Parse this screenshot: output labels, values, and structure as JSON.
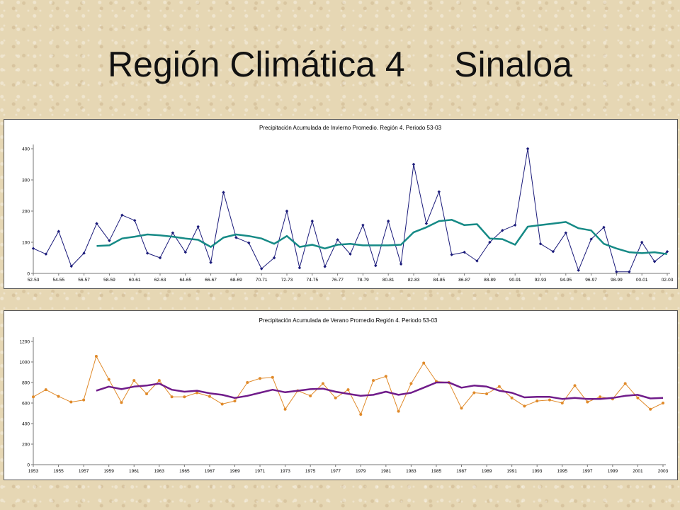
{
  "page": {
    "title": "Región Climática 4     Sinaloa"
  },
  "chart_data": [
    {
      "type": "line",
      "title": "Precipitación Acumulada de Invierno Promedio. Región 4. Periodo 53-03",
      "xlabel": "",
      "ylabel": "",
      "ylim": [
        0,
        400
      ],
      "yticks": [
        0,
        100,
        200,
        300,
        400
      ],
      "grid": false,
      "legend": "none",
      "categories": [
        "52-53",
        "53-54",
        "54-55",
        "55-56",
        "56-57",
        "57-58",
        "58-59",
        "59-60",
        "60-61",
        "61-62",
        "62-63",
        "63-64",
        "64-65",
        "65-66",
        "66-67",
        "67-68",
        "68-69",
        "69-70",
        "70-71",
        "71-72",
        "72-73",
        "73-74",
        "74-75",
        "75-76",
        "76-77",
        "77-78",
        "78-79",
        "79-80",
        "80-81",
        "81-82",
        "82-83",
        "83-84",
        "84-85",
        "85-86",
        "86-87",
        "87-88",
        "88-89",
        "89-90",
        "90-91",
        "91-92",
        "92-93",
        "93-94",
        "94-95",
        "95-96",
        "96-97",
        "97-98",
        "98-99",
        "99-00",
        "00-01",
        "01-02",
        "02-03"
      ],
      "tick_labels": [
        "52-53",
        "54-55",
        "56-57",
        "58-59",
        "60-61",
        "62-63",
        "64-65",
        "66-67",
        "68-69",
        "70-71",
        "72-73",
        "74-75",
        "76-77",
        "78-79",
        "80-81",
        "82-83",
        "84-85",
        "86-87",
        "88-89",
        "90-91",
        "92-93",
        "94-95",
        "96-97",
        "98-99",
        "00-01",
        "02-03"
      ],
      "series": [
        {
          "color": "#1a1a7a",
          "marker": "diamond",
          "stroke_width": 1,
          "values": [
            80,
            62,
            135,
            23,
            65,
            160,
            105,
            187,
            170,
            65,
            50,
            130,
            68,
            150,
            35,
            260,
            115,
            98,
            15,
            50,
            200,
            18,
            168,
            22,
            108,
            62,
            155,
            25,
            168,
            30,
            350,
            160,
            262,
            60,
            68,
            40,
            100,
            138,
            155,
            400,
            95,
            70,
            130,
            10,
            110,
            148,
            5,
            5,
            100,
            38,
            70
          ]
        },
        {
          "color": "#168a86",
          "marker": "none",
          "stroke_width": 2.5,
          "values": [
            null,
            null,
            null,
            null,
            null,
            88,
            90,
            112,
            118,
            125,
            122,
            118,
            112,
            108,
            85,
            115,
            125,
            120,
            112,
            95,
            120,
            85,
            92,
            80,
            92,
            95,
            90,
            90,
            90,
            92,
            132,
            148,
            168,
            172,
            155,
            158,
            112,
            110,
            92,
            150,
            155,
            160,
            165,
            145,
            138,
            95,
            80,
            68,
            65,
            68,
            62
          ]
        }
      ]
    },
    {
      "type": "line",
      "title": "Precipitación Acumulada de Verano Promedio.Región 4. Periodo 53-03",
      "xlabel": "",
      "ylabel": "",
      "ylim": [
        0,
        1200
      ],
      "yticks": [
        0,
        200,
        400,
        600,
        800,
        1000,
        1200
      ],
      "grid": false,
      "legend": "none",
      "categories": [
        "1953",
        "1954",
        "1955",
        "1956",
        "1957",
        "1958",
        "1959",
        "1960",
        "1961",
        "1962",
        "1963",
        "1964",
        "1965",
        "1966",
        "1967",
        "1968",
        "1969",
        "1970",
        "1971",
        "1972",
        "1973",
        "1974",
        "1975",
        "1976",
        "1977",
        "1978",
        "1979",
        "1980",
        "1981",
        "1982",
        "1983",
        "1984",
        "1985",
        "1986",
        "1987",
        "1988",
        "1989",
        "1990",
        "1991",
        "1992",
        "1993",
        "1994",
        "1995",
        "1996",
        "1997",
        "1998",
        "1999",
        "2000",
        "2001",
        "2002",
        "2003"
      ],
      "tick_labels": [
        "1953",
        "1955",
        "1957",
        "1959",
        "1961",
        "1963",
        "1965",
        "1967",
        "1969",
        "1971",
        "1973",
        "1975",
        "1977",
        "1979",
        "1981",
        "1983",
        "1985",
        "1987",
        "1989",
        "1991",
        "1993",
        "1995",
        "1997",
        "1999",
        "2001",
        "2003"
      ],
      "series": [
        {
          "color": "#e08a2a",
          "marker": "dot",
          "stroke_width": 1,
          "values": [
            660,
            730,
            665,
            610,
            630,
            1055,
            830,
            605,
            820,
            690,
            820,
            660,
            660,
            700,
            665,
            590,
            620,
            800,
            840,
            850,
            540,
            720,
            670,
            790,
            650,
            730,
            490,
            820,
            860,
            520,
            790,
            990,
            810,
            800,
            550,
            700,
            690,
            760,
            650,
            570,
            620,
            630,
            600,
            770,
            610,
            660,
            640,
            790,
            650,
            540,
            600
          ]
        },
        {
          "color": "#701c8a",
          "marker": "none",
          "stroke_width": 2.5,
          "values": [
            null,
            null,
            null,
            null,
            null,
            720,
            760,
            735,
            760,
            770,
            790,
            730,
            710,
            720,
            695,
            680,
            650,
            670,
            700,
            730,
            705,
            720,
            735,
            740,
            710,
            690,
            670,
            680,
            710,
            680,
            700,
            750,
            800,
            800,
            750,
            770,
            760,
            720,
            700,
            655,
            660,
            660,
            640,
            650,
            640,
            640,
            650,
            670,
            680,
            645,
            650
          ]
        }
      ]
    }
  ]
}
